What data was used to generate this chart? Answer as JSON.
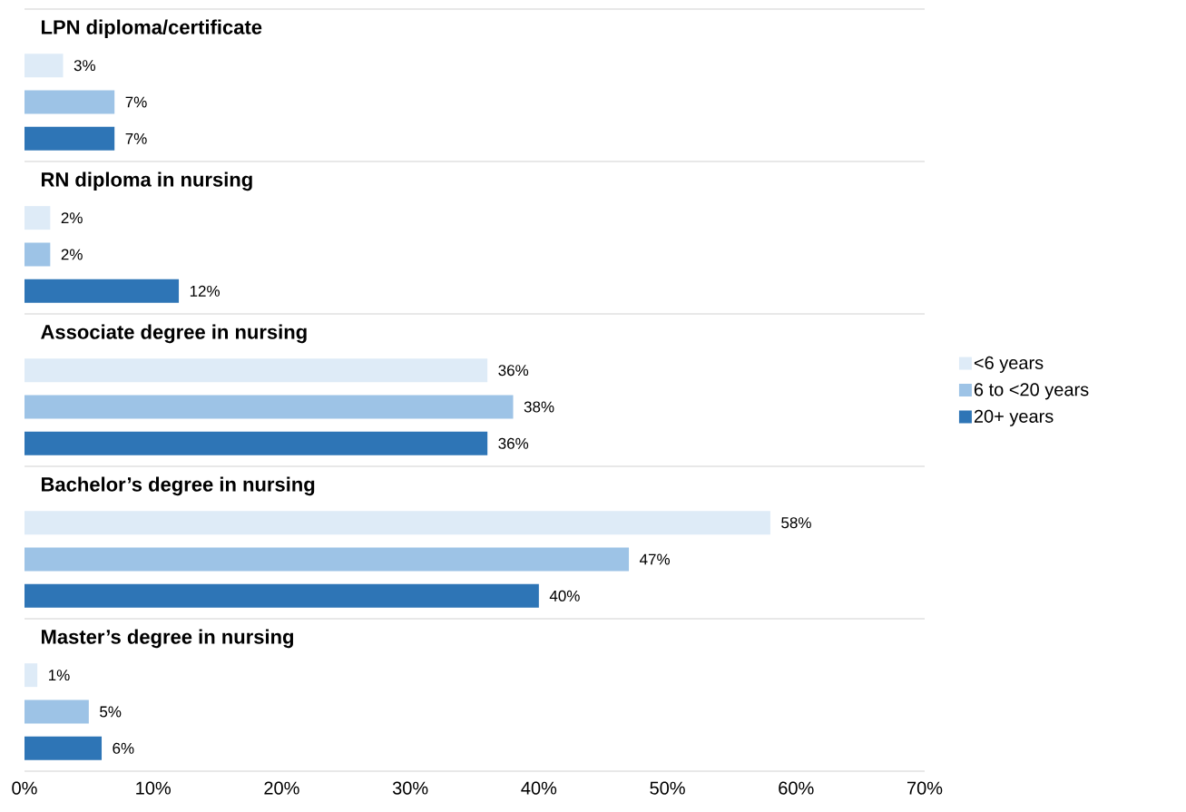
{
  "chart_data": {
    "type": "bar",
    "orientation": "horizontal",
    "categories": [
      "LPN diploma/certificate",
      "RN diploma in nursing",
      "Associate degree in nursing",
      "Bachelor’s degree in nursing",
      "Master’s degree in nursing"
    ],
    "series": [
      {
        "name": "<6 years",
        "color": "#deebf7",
        "values": [
          3,
          2,
          36,
          58,
          1
        ],
        "value_labels": [
          "3%",
          "2%",
          "36%",
          "58%",
          "1%"
        ]
      },
      {
        "name": "6 to <20 years",
        "color": "#9dc3e6",
        "values": [
          7,
          2,
          38,
          47,
          5
        ],
        "value_labels": [
          "7%",
          "2%",
          "38%",
          "47%",
          "5%"
        ]
      },
      {
        "name": "20+ years",
        "color": "#2e75b6",
        "values": [
          7,
          12,
          36,
          40,
          6
        ],
        "value_labels": [
          "7%",
          "12%",
          "36%",
          "40%",
          "6%"
        ]
      }
    ],
    "xlim": [
      0,
      70
    ],
    "xticks": [
      {
        "value": 0,
        "label": "0%"
      },
      {
        "value": 10,
        "label": "10%"
      },
      {
        "value": 20,
        "label": "20%"
      },
      {
        "value": 30,
        "label": "30%"
      },
      {
        "value": 40,
        "label": "40%"
      },
      {
        "value": 50,
        "label": "50%"
      },
      {
        "value": 60,
        "label": "60%"
      },
      {
        "value": 70,
        "label": "70%"
      }
    ],
    "grid": "y",
    "legend": "right"
  }
}
